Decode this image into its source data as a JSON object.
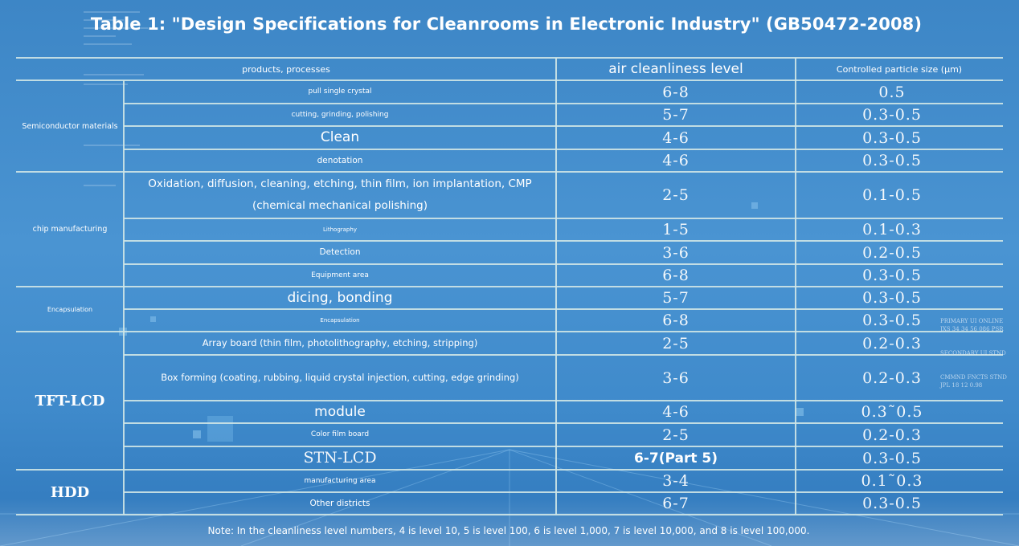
{
  "title": "Table 1: \"Design Specifications for Cleanrooms in Electronic Industry\" (GB50472-2008)",
  "headers": {
    "products": "products, processes",
    "level": "air cleanliness level",
    "particle": "Controlled particle size (µm)"
  },
  "categories": [
    {
      "label": "Semiconductor materials"
    },
    {
      "label": "chip manufacturing"
    },
    {
      "label": "Encapsulation"
    },
    {
      "label": "TFT-LCD"
    },
    {
      "label": "HDD"
    }
  ],
  "rows": [
    {
      "process": "pull single crystal",
      "level": "6-8",
      "particle": "0.5"
    },
    {
      "process": "cutting, grinding, polishing",
      "level": "5-7",
      "particle": "0.3-0.5"
    },
    {
      "process": "Clean",
      "level": "4-6",
      "particle": "0.3-0.5"
    },
    {
      "process": "denotation",
      "level": "4-6",
      "particle": "0.3-0.5"
    },
    {
      "process": "Oxidation, diffusion, cleaning, etching, thin film, ion implantation, CMP (chemical mechanical polishing)",
      "level": "2-5",
      "particle": "0.1-0.5"
    },
    {
      "process": "Lithography",
      "level": "1-5",
      "particle": "0.1-0.3"
    },
    {
      "process": "Detection",
      "level": "3-6",
      "particle": "0.2-0.5"
    },
    {
      "process": "Equipment area",
      "level": "6-8",
      "particle": "0.3-0.5"
    },
    {
      "process": "dicing, bonding",
      "level": "5-7",
      "particle": "0.3-0.5"
    },
    {
      "process": "Encapsulation",
      "level": "6-8",
      "particle": "0.3-0.5"
    },
    {
      "process": "Array board (thin film, photolithography, etching, stripping)",
      "level": "2-5",
      "particle": "0.2-0.3"
    },
    {
      "process": "Box forming (coating, rubbing, liquid crystal injection, cutting, edge grinding)",
      "level": "3-6",
      "particle": "0.2-0.3"
    },
    {
      "process": "module",
      "level": "4-6",
      "particle": "0.3˜0.5"
    },
    {
      "process": "Color film board",
      "level": "2-5",
      "particle": "0.2-0.3"
    },
    {
      "process": "STN-LCD",
      "level": "6-7(Part 5)",
      "particle": "0.3-0.5"
    },
    {
      "process": "manufacturing area",
      "level": "3-4",
      "particle": "0.1˜0.3"
    },
    {
      "process": "Other districts",
      "level": "6-7",
      "particle": "0.3-0.5"
    }
  ],
  "stamps": {
    "line1": "PRIMARY UI ONLINE",
    "line2": "JXS 34 34 56 086 PSR",
    "line3": "SECONDARY UI STND",
    "line4": "CMMND FNCTS STND",
    "line5": "JPL 18 12 0.98"
  },
  "note": "Note: In the cleanliness level numbers, 4 is level 10, 5 is level 100, 6 is level 1,000, 7 is level 10,000, and 8 is level 100,000."
}
